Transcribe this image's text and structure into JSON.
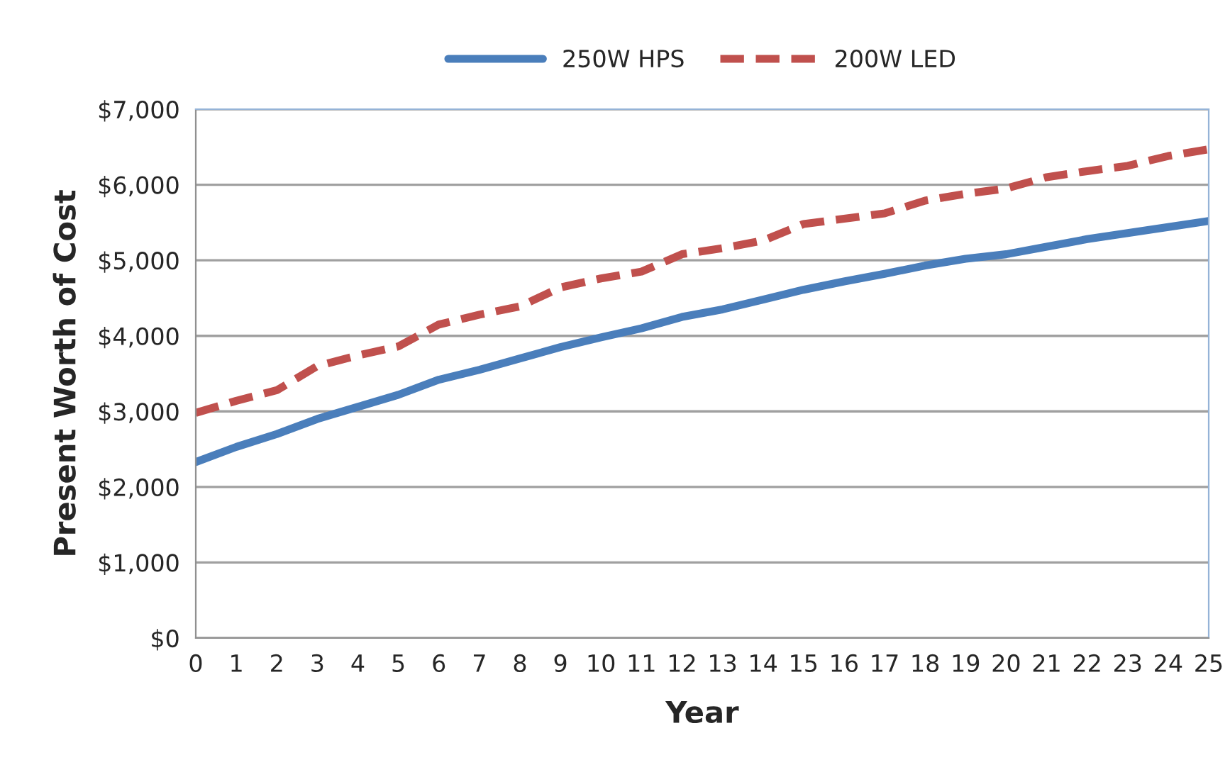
{
  "chart_data": {
    "type": "line",
    "xlabel": "Year",
    "ylabel": "Present Worth of Cost",
    "categories": [
      "0",
      "1",
      "2",
      "3",
      "4",
      "5",
      "6",
      "7",
      "8",
      "9",
      "10",
      "11",
      "12",
      "13",
      "14",
      "15",
      "16",
      "17",
      "18",
      "19",
      "20",
      "21",
      "22",
      "23",
      "24",
      "25"
    ],
    "series": [
      {
        "name": "250W HPS",
        "color": "#4a7ebb",
        "line_style": "solid",
        "values": [
          2330,
          2530,
          2700,
          2900,
          3060,
          3220,
          3420,
          3550,
          3700,
          3850,
          3980,
          4100,
          4250,
          4350,
          4480,
          4610,
          4720,
          4820,
          4930,
          5020,
          5080,
          5180,
          5280,
          5360,
          5440,
          5520
        ]
      },
      {
        "name": "200W LED",
        "color": "#c0504d",
        "line_style": "dashed",
        "values": [
          2980,
          3140,
          3280,
          3600,
          3740,
          3860,
          4150,
          4280,
          4390,
          4640,
          4760,
          4850,
          5080,
          5160,
          5260,
          5480,
          5550,
          5620,
          5790,
          5880,
          5950,
          6100,
          6180,
          6250,
          6380,
          6470
        ]
      }
    ],
    "ylim": [
      0,
      7000
    ],
    "yticks": [
      {
        "value": 0,
        "label": "$0"
      },
      {
        "value": 1000,
        "label": "$1,000"
      },
      {
        "value": 2000,
        "label": "$2,000"
      },
      {
        "value": 3000,
        "label": "$3,000"
      },
      {
        "value": 4000,
        "label": "$4,000"
      },
      {
        "value": 5000,
        "label": "$5,000"
      },
      {
        "value": 6000,
        "label": "$6,000"
      },
      {
        "value": 7000,
        "label": "$7,000"
      }
    ],
    "grid": "y",
    "legend": "top",
    "marker": "none"
  }
}
